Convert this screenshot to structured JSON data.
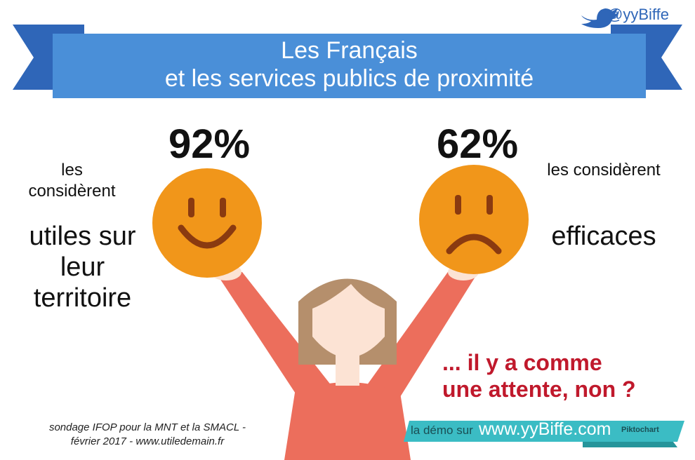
{
  "header": {
    "twitter_handle": "@yyBiffe",
    "title_line1": "Les Français",
    "title_line2": "et les services publics de proximité"
  },
  "left": {
    "percent": "92%",
    "intro": "les considèrent",
    "statement": "utiles sur leur territoire",
    "face": "happy"
  },
  "right": {
    "percent": "62%",
    "intro": "les considèrent",
    "statement": "efficaces",
    "face": "sad"
  },
  "callout": {
    "line1": "... il y a comme",
    "line2": "une attente, non ?"
  },
  "source": {
    "line1": "sondage IFOP pour la MNT et la SMACL -",
    "line2": "février 2017 - www.utiledemain.fr"
  },
  "footer": {
    "prefix": "la démo sur",
    "url": "www.yyBiffe.com",
    "logo": "Piktochart"
  },
  "colors": {
    "banner": "#4a8fd8",
    "banner_dark": "#2f66b8",
    "face": "#f1961a",
    "arm": "#ec6e5c",
    "hair": "#b58f6c",
    "footer": "#3bbcc4",
    "accent_red": "#c0192c"
  }
}
